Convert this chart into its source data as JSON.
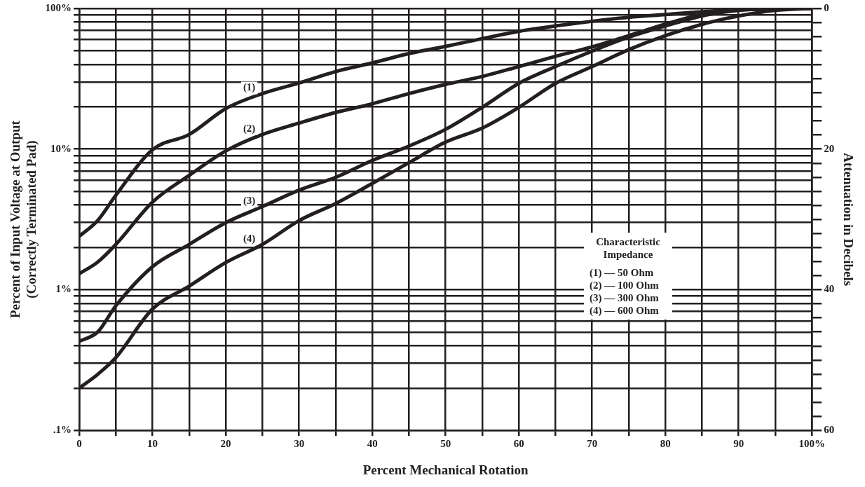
{
  "chart_data": {
    "type": "line",
    "xlabel": "Percent Mechanical Rotation",
    "ylabel": "Percent of Input Voltage at Output\n(Correctly Terminated Pad)",
    "y2label": "Attenuation in Decibels",
    "x": [
      0,
      2.5,
      5,
      10,
      15,
      20,
      25,
      30,
      35,
      40,
      45,
      50,
      55,
      60,
      65,
      70,
      75,
      80,
      85,
      90,
      95,
      100
    ],
    "series": [
      {
        "name": "(1)",
        "color": "#231f20",
        "values": [
          2.4,
          3.1,
          4.7,
          9.9,
          12.7,
          19.4,
          24.8,
          29.5,
          35.6,
          41,
          47.7,
          53.7,
          61,
          68.7,
          75,
          81,
          86.5,
          90.5,
          94.7,
          98,
          99.5,
          100
        ]
      },
      {
        "name": "(2)",
        "color": "#231f20",
        "values": [
          1.3,
          1.57,
          2.1,
          4.2,
          6.5,
          9.7,
          12.7,
          15.3,
          18.2,
          21,
          24.8,
          28.8,
          32.8,
          38.6,
          45.6,
          53.3,
          64,
          77.4,
          90.5,
          97.5,
          99.5,
          100
        ]
      },
      {
        "name": "(3)",
        "color": "#231f20",
        "values": [
          0.43,
          0.5,
          0.77,
          1.46,
          2.1,
          3,
          3.9,
          5.1,
          6.3,
          8.3,
          10.5,
          13.8,
          19.8,
          29.3,
          38.6,
          49.7,
          62.5,
          75,
          88.4,
          97,
          99.5,
          100
        ]
      },
      {
        "name": "(4)",
        "color": "#231f20",
        "values": [
          0.2,
          0.25,
          0.33,
          0.73,
          1.06,
          1.56,
          2.1,
          3.1,
          4.1,
          5.7,
          8,
          11.2,
          14.1,
          19.8,
          29.3,
          38.6,
          50.9,
          64,
          77,
          88.4,
          97,
          100
        ]
      }
    ],
    "log": "y",
    "grid": true,
    "marker": "none",
    "line_style": "solid",
    "legend": false,
    "xlim": [
      0,
      100
    ],
    "xticks": [
      0,
      {
        "value": 5,
        "label": null
      },
      10,
      {
        "value": 15,
        "label": null
      },
      20,
      {
        "value": 25,
        "label": null
      },
      30,
      {
        "value": 35,
        "label": null
      },
      40,
      {
        "value": 45,
        "label": null
      },
      50,
      {
        "value": 55,
        "label": null
      },
      60,
      {
        "value": 65,
        "label": null
      },
      70,
      {
        "value": 75,
        "label": null
      },
      80,
      {
        "value": 85,
        "label": null
      },
      90,
      {
        "value": 95,
        "label": null
      },
      {
        "value": 100,
        "label": "100%"
      }
    ],
    "ylim": [
      0.1,
      100
    ],
    "yticks": [
      {
        "value": 0.1,
        "label": ".1%"
      },
      {
        "value": 0.2,
        "label": null
      },
      {
        "value": 0.3,
        "label": null
      },
      {
        "value": 0.4,
        "label": null
      },
      {
        "value": 0.5,
        "label": null
      },
      {
        "value": 0.6,
        "label": null
      },
      {
        "value": 0.7,
        "label": null
      },
      {
        "value": 0.8,
        "label": null
      },
      {
        "value": 0.9,
        "label": null
      },
      {
        "value": 1,
        "label": "1%"
      },
      {
        "value": 2,
        "label": null
      },
      {
        "value": 3,
        "label": null
      },
      {
        "value": 4,
        "label": null
      },
      {
        "value": 5,
        "label": null
      },
      {
        "value": 6,
        "label": null
      },
      {
        "value": 7,
        "label": null
      },
      {
        "value": 8,
        "label": null
      },
      {
        "value": 9,
        "label": null
      },
      {
        "value": 10,
        "label": "10%"
      },
      {
        "value": 20,
        "label": null
      },
      {
        "value": 30,
        "label": null
      },
      {
        "value": 40,
        "label": null
      },
      {
        "value": 50,
        "label": null
      },
      {
        "value": 60,
        "label": null
      },
      {
        "value": 70,
        "label": null
      },
      {
        "value": 80,
        "label": null
      },
      {
        "value": 90,
        "label": null
      },
      {
        "value": 100,
        "label": "100%"
      }
    ],
    "y2lim": [
      60,
      0
    ],
    "y2ticks": [
      0,
      {
        "value": 2,
        "label": null
      },
      {
        "value": 4,
        "label": null
      },
      {
        "value": 6,
        "label": null
      },
      {
        "value": 8,
        "label": null
      },
      {
        "value": 10,
        "label": null
      },
      {
        "value": 12,
        "label": null
      },
      {
        "value": 14,
        "label": null
      },
      {
        "value": 16,
        "label": null
      },
      {
        "value": 18,
        "label": null
      },
      20,
      {
        "value": 22,
        "label": null
      },
      {
        "value": 24,
        "label": null
      },
      {
        "value": 26,
        "label": null
      },
      {
        "value": 28,
        "label": null
      },
      {
        "value": 30,
        "label": null
      },
      {
        "value": 32,
        "label": null
      },
      {
        "value": 34,
        "label": null
      },
      {
        "value": 36,
        "label": null
      },
      {
        "value": 38,
        "label": null
      },
      40,
      {
        "value": 42,
        "label": null
      },
      {
        "value": 44,
        "label": null
      },
      {
        "value": 46,
        "label": null
      },
      {
        "value": 48,
        "label": null
      },
      {
        "value": 50,
        "label": null
      },
      {
        "value": 52,
        "label": null
      },
      {
        "value": 54,
        "label": null
      },
      {
        "value": 56,
        "label": null
      },
      {
        "value": 58,
        "label": null
      },
      60
    ],
    "annotations": [
      "Characteristic Impedance",
      "(1) — 50 Ohm",
      "(2) — 100 Ohm",
      "(3) — 300 Ohm",
      "(4) — 600 Ohm"
    ]
  }
}
